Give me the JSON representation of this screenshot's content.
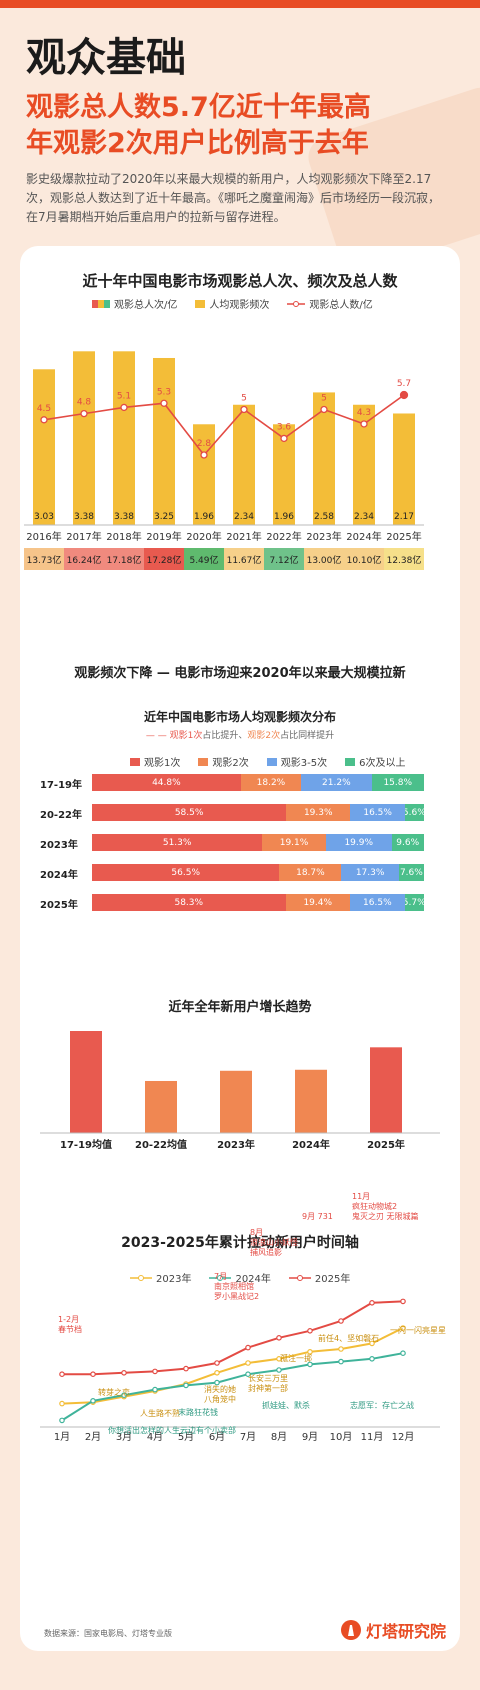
{
  "header": {
    "title": "观众基础",
    "subtitle_line1": "观影总人数5.7亿近十年最高",
    "subtitle_line2": "年观影2次用户比例高于去年",
    "description": "影史级爆款拉动了2020年以来最大规模的新用户，人均观影频次下降至2.17次，观影总人数达到了近十年最高。《哪吒之魔童闹海》后市场经历一段沉寂，在7月暑期档开始后重启用户的拉新与留存进程。"
  },
  "colors": {
    "red": "#e85a4f",
    "orange": "#f08752",
    "blue": "#6fa3e8",
    "green": "#4bbf8b",
    "yellow": "#f3bd38",
    "teal": "#3fb39a",
    "line_red": "#e34b44"
  },
  "chart_data": [
    {
      "type": "bar",
      "title": "近十年中国电影市场观影总人次、频次及总人数",
      "legend": [
        "观影总人次/亿",
        "人均观影频次",
        "观影总人数/亿"
      ],
      "categories": [
        "2016年",
        "2017年",
        "2018年",
        "2019年",
        "2020年",
        "2021年",
        "2022年",
        "2023年",
        "2024年",
        "2025年"
      ],
      "series": [
        {
          "name": "人均观影频次",
          "values": [
            3.03,
            3.38,
            3.38,
            3.25,
            1.96,
            2.34,
            1.96,
            2.58,
            2.34,
            2.17
          ]
        },
        {
          "name": "观影总人数/亿",
          "values": [
            4.5,
            4.8,
            5.1,
            5.3,
            2.8,
            5.0,
            3.6,
            5.0,
            4.3,
            5.7
          ]
        },
        {
          "name": "观影总人次/亿",
          "values": [
            "13.73亿",
            "16.24亿",
            "17.18亿",
            "17.28亿",
            "5.49亿",
            "11.67亿",
            "7.12亿",
            "13.00亿",
            "10.10亿",
            "12.38亿"
          ]
        }
      ]
    },
    {
      "type": "bar",
      "title": "近年中国电影市场人均观影频次分布",
      "note": "观影1次占比提升、观影2次占比同样提升",
      "note_parts": [
        "观影1次",
        "占比提升、",
        "观影2次",
        "占比同样提升"
      ],
      "legend": [
        "观影1次",
        "观影2次",
        "观影3-5次",
        "6次及以上"
      ],
      "categories": [
        "17-19年",
        "20-22年",
        "2023年",
        "2024年",
        "2025年"
      ],
      "series": [
        {
          "name": "观影1次",
          "values": [
            "44.8%",
            "58.5%",
            "51.3%",
            "56.5%",
            "58.3%"
          ]
        },
        {
          "name": "观影2次",
          "values": [
            "18.2%",
            "19.3%",
            "19.1%",
            "18.7%",
            "19.4%"
          ]
        },
        {
          "name": "观影3-5次",
          "values": [
            "21.2%",
            "16.5%",
            "19.9%",
            "17.3%",
            "16.5%"
          ]
        },
        {
          "name": "6次及以上",
          "values": [
            "15.8%",
            "5.6%",
            "9.6%",
            "7.6%",
            "5.7%"
          ]
        }
      ]
    },
    {
      "type": "bar",
      "title": "近年全年新用户增长趋势",
      "categories": [
        "17-19均值",
        "20-22均值",
        "2023年",
        "2024年",
        "2025年"
      ],
      "values": [
        1.0,
        0.51,
        0.61,
        0.62,
        0.84
      ]
    },
    {
      "type": "line",
      "title": "2023-2025年累计拉动新用户时间轴",
      "x": [
        "1月",
        "2月",
        "3月",
        "4月",
        "5月",
        "6月",
        "7月",
        "8月",
        "9月",
        "10月",
        "11月",
        "12月"
      ],
      "series": [
        {
          "name": "2023年",
          "values": [
            0.16,
            0.17,
            0.21,
            0.25,
            0.3,
            0.38,
            0.45,
            0.48,
            0.53,
            0.55,
            0.59,
            0.7
          ]
        },
        {
          "name": "2024年",
          "values": [
            0.04,
            0.18,
            0.22,
            0.26,
            0.29,
            0.31,
            0.37,
            0.4,
            0.44,
            0.46,
            0.48,
            0.52
          ]
        },
        {
          "name": "2025年",
          "values": [
            0.37,
            0.37,
            0.38,
            0.39,
            0.41,
            0.45,
            0.56,
            0.63,
            0.68,
            0.75,
            0.88,
            0.89
          ]
        }
      ],
      "annotations": [
        {
          "text": "1-2月\n春节档",
          "color": "red"
        },
        {
          "text": "7月\n南京照相馆\n罗小黑战记2",
          "color": "red"
        },
        {
          "text": "8月\n浪浪山小妖怪\n捕风追影",
          "color": "red"
        },
        {
          "text": "9月 731",
          "color": "red"
        },
        {
          "text": "11月\n疯狂动物城2\n鬼灭之刃 无限城篇",
          "color": "red"
        },
        {
          "text": "转芽之恋",
          "color": "yellow"
        },
        {
          "text": "人生路不熟",
          "color": "yellow"
        },
        {
          "text": "消失的她\n八角笼中",
          "color": "yellow"
        },
        {
          "text": "长安三万里\n封神第一部",
          "color": "yellow"
        },
        {
          "text": "孤注一掷",
          "color": "yellow"
        },
        {
          "text": "前任4、坚如磐石",
          "color": "yellow"
        },
        {
          "text": "一闪一闪亮星星",
          "color": "yellow"
        },
        {
          "text": "你想活出怎样的人生",
          "color": "teal"
        },
        {
          "text": "末路狂花钱",
          "color": "teal"
        },
        {
          "text": "云边有个小卖部",
          "color": "teal"
        },
        {
          "text": "抓娃娃、默杀",
          "color": "teal"
        },
        {
          "text": "志愿军：存亡之战",
          "color": "teal"
        }
      ]
    }
  ],
  "section2_title": "观影频次下降 — 电影市场迎来2020年以来最大规模拉新",
  "footer": {
    "source": "数据来源：国家电影局、灯塔专业版",
    "brand": "灯塔研究院"
  }
}
